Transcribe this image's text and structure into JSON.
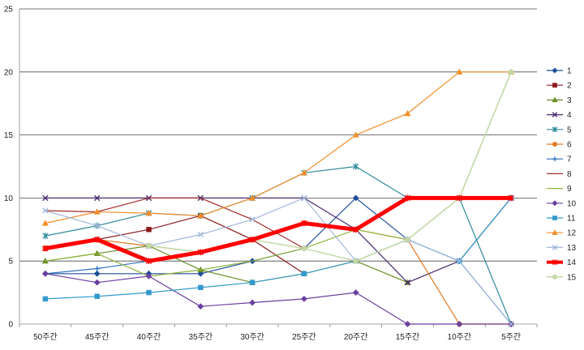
{
  "chart_data": {
    "type": "line",
    "categories": [
      "50주간",
      "45주간",
      "40주간",
      "35주간",
      "30주간",
      "25주간",
      "20주간",
      "15주간",
      "10주간",
      "5주간"
    ],
    "ylim": [
      0,
      25
    ],
    "yticks": [
      0,
      5,
      10,
      15,
      20,
      25
    ],
    "grid": "horizontal",
    "legend_position": "right",
    "series": [
      {
        "name": "1",
        "color": "#1f4e99",
        "marker": "diamond",
        "width": 1.2,
        "values": [
          4,
          4,
          4,
          4,
          5,
          6,
          10,
          6.7,
          5,
          0
        ]
      },
      {
        "name": "2",
        "color": "#8b1a1a",
        "marker": "square",
        "width": 1.2,
        "values": [
          6,
          6.7,
          7.5,
          8.6,
          6.7,
          4,
          null,
          null,
          null,
          null
        ]
      },
      {
        "name": "3",
        "color": "#6a8e23",
        "marker": "triangle",
        "width": 1.2,
        "values": [
          5,
          5.6,
          6.2,
          4.3,
          3.3,
          4,
          5,
          3.3,
          null,
          null
        ]
      },
      {
        "name": "4",
        "color": "#4b2c6f",
        "marker": "x",
        "width": 1.2,
        "values": [
          10,
          10,
          10,
          10,
          10,
          10,
          7.5,
          3.3,
          5,
          10
        ]
      },
      {
        "name": "5",
        "color": "#2e8b9a",
        "marker": "star",
        "width": 1.2,
        "values": [
          7,
          7.8,
          8.8,
          8.6,
          10,
          12,
          12.5,
          10,
          10,
          0
        ]
      },
      {
        "name": "6",
        "color": "#e07b24",
        "marker": "circle",
        "width": 1.2,
        "values": [
          6,
          6.7,
          6.2,
          5.7,
          6.7,
          8,
          7.5,
          6.7,
          0,
          0
        ]
      },
      {
        "name": "7",
        "color": "#2c6fbf",
        "marker": "plus",
        "width": 1.2,
        "values": [
          4,
          4.4,
          5,
          5.7,
          6.7,
          8,
          null,
          null,
          null,
          null
        ]
      },
      {
        "name": "8",
        "color": "#a52a2a",
        "marker": "none",
        "width": 1.2,
        "values": [
          9,
          8.9,
          10,
          10,
          8.3,
          6,
          null,
          null,
          null,
          null
        ]
      },
      {
        "name": "9",
        "color": "#8fb339",
        "marker": "none",
        "width": 1.2,
        "values": [
          5,
          5.6,
          3.8,
          4.3,
          5,
          6,
          7.5,
          6.7,
          10,
          20
        ]
      },
      {
        "name": "10",
        "color": "#6b3fa0",
        "marker": "diamond",
        "width": 1.2,
        "values": [
          4,
          3.3,
          3.8,
          1.4,
          1.7,
          2,
          2.5,
          0,
          0,
          0
        ]
      },
      {
        "name": "11",
        "color": "#3399cc",
        "marker": "square",
        "width": 1.2,
        "values": [
          2,
          2.2,
          2.5,
          2.9,
          3.3,
          4,
          5,
          6.7,
          5,
          10
        ]
      },
      {
        "name": "12",
        "color": "#f28e2b",
        "marker": "triangle",
        "width": 1.2,
        "values": [
          8,
          8.9,
          8.8,
          8.6,
          10,
          12,
          15,
          16.7,
          20,
          20
        ]
      },
      {
        "name": "13",
        "color": "#a3b8dc",
        "marker": "x",
        "width": 1.2,
        "values": [
          9,
          7.8,
          6.2,
          7.1,
          8.3,
          10,
          5,
          6.7,
          5,
          0
        ]
      },
      {
        "name": "14",
        "color": "#ff0000",
        "marker": "star",
        "width": 5,
        "values": [
          6,
          6.7,
          5,
          5.7,
          6.7,
          8,
          7.5,
          10,
          10,
          10
        ]
      },
      {
        "name": "15",
        "color": "#c3d9a5",
        "marker": "circle",
        "width": 1.5,
        "values": [
          null,
          null,
          6.2,
          5.7,
          6.7,
          6,
          5,
          6.7,
          10,
          20
        ]
      }
    ]
  }
}
